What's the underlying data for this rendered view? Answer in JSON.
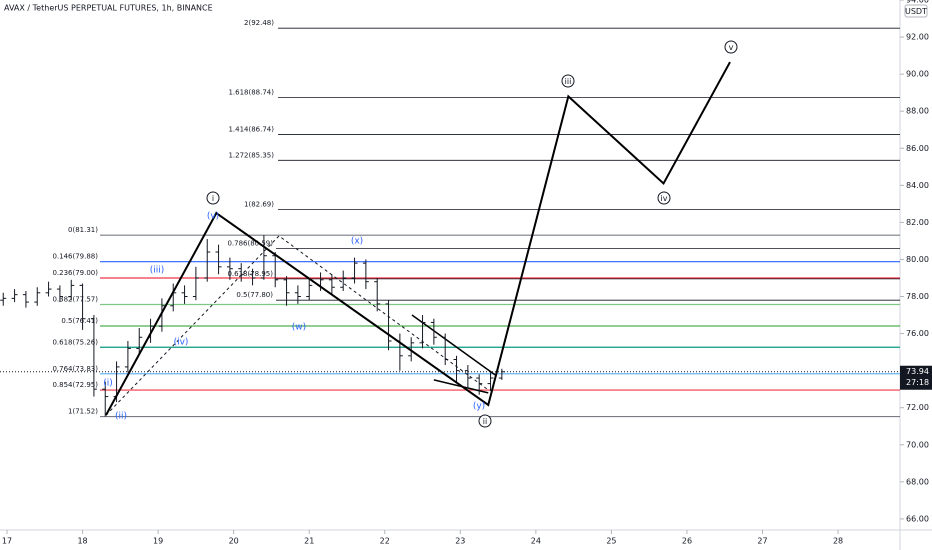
{
  "chart_data": {
    "type": "ohlc",
    "title": "AVAX / TetherUS PERPETUAL FUTURES, 1h, BINANCE",
    "currency": "USDT",
    "color": "#131722",
    "x": [
      16.95,
      17.1,
      17.25,
      17.4,
      17.55,
      17.7,
      17.85,
      18.0,
      18.15,
      18.3,
      18.45,
      18.6,
      18.75,
      18.9,
      19.05,
      19.2,
      19.35,
      19.5,
      19.65,
      19.8,
      19.95,
      20.1,
      20.25,
      20.4,
      20.55,
      20.7,
      20.85,
      21.0,
      21.15,
      21.3,
      21.45,
      21.6,
      21.75,
      21.9,
      22.05,
      22.2,
      22.35,
      22.5,
      22.65,
      22.8,
      22.95,
      23.1,
      23.25,
      23.4,
      23.55
    ],
    "open": [
      77.8,
      77.9,
      78.1,
      77.7,
      78.2,
      78.4,
      78.0,
      78.6,
      76.8,
      73.0,
      72.6,
      74.2,
      75.2,
      75.8,
      76.4,
      77.5,
      78.2,
      78.0,
      79.0,
      80.4,
      79.6,
      79.5,
      79.2,
      79.0,
      80.2,
      78.9,
      78.2,
      78.0,
      78.6,
      78.9,
      78.5,
      79.0,
      79.8,
      78.8,
      77.6,
      75.6,
      74.8,
      75.5,
      76.6,
      75.8,
      74.6,
      74.0,
      73.6,
      73.3,
      73.6
    ],
    "high": [
      78.2,
      78.4,
      78.3,
      78.5,
      78.8,
      78.6,
      78.9,
      78.7,
      77.0,
      73.4,
      74.5,
      75.6,
      76.3,
      76.8,
      77.9,
      78.7,
      78.6,
      79.6,
      81.1,
      80.8,
      80.1,
      79.8,
      79.5,
      81.31,
      80.4,
      79.1,
      78.6,
      79.0,
      79.3,
      79.2,
      79.4,
      80.1,
      80.0,
      79.0,
      77.8,
      76.0,
      75.8,
      77.0,
      76.8,
      76.0,
      74.8,
      74.3,
      73.8,
      73.9,
      74.1
    ],
    "low": [
      77.5,
      77.7,
      77.4,
      77.5,
      78.0,
      77.7,
      77.8,
      76.2,
      72.6,
      71.52,
      72.3,
      73.9,
      74.9,
      75.5,
      76.1,
      77.2,
      77.6,
      77.8,
      78.8,
      79.2,
      78.9,
      78.8,
      78.6,
      78.9,
      78.5,
      77.5,
      77.6,
      77.8,
      78.3,
      78.1,
      78.3,
      78.7,
      78.4,
      77.2,
      75.1,
      74.0,
      74.5,
      75.2,
      75.4,
      74.3,
      73.4,
      73.1,
      72.7,
      72.9,
      73.5
    ],
    "close": [
      77.9,
      78.1,
      77.7,
      78.2,
      78.4,
      78.0,
      78.6,
      76.8,
      73.0,
      72.6,
      74.2,
      75.2,
      75.8,
      76.4,
      77.5,
      78.2,
      78.0,
      79.0,
      80.4,
      79.6,
      79.5,
      79.2,
      79.0,
      80.2,
      78.9,
      78.2,
      78.0,
      78.6,
      78.9,
      78.5,
      79.0,
      79.8,
      78.8,
      77.6,
      75.6,
      74.8,
      75.5,
      76.6,
      75.8,
      74.6,
      74.0,
      73.6,
      73.3,
      73.6,
      73.94
    ],
    "xlim": [
      16.907,
      28.82
    ],
    "xticks": [
      17,
      18,
      19,
      20,
      21,
      22,
      23,
      24,
      25,
      26,
      27,
      28
    ],
    "ylim": [
      65.4,
      94.0
    ],
    "yticks": [
      {
        "value": 66,
        "label": "66.00"
      },
      {
        "value": 68,
        "label": "68.00"
      },
      {
        "value": 70,
        "label": "70.00"
      },
      {
        "value": 72,
        "label": "72.00"
      },
      {
        "value": 74,
        "label": "74.00"
      },
      {
        "value": 76,
        "label": "76.00"
      },
      {
        "value": 78,
        "label": "78.00"
      },
      {
        "value": 80,
        "label": "80.00"
      },
      {
        "value": 82,
        "label": "82.00"
      },
      {
        "value": 84,
        "label": "84.00"
      },
      {
        "value": 86,
        "label": "86.00"
      },
      {
        "value": 88,
        "label": "88.00"
      },
      {
        "value": 90,
        "label": "90.00"
      },
      {
        "value": 92,
        "label": "92.00"
      },
      {
        "value": 94,
        "label": "94.00"
      }
    ],
    "last_price": 73.94,
    "countdown": "27:18",
    "fib_sets": [
      {
        "levels": [
          {
            "label": "0(81.31)",
            "value": 81.31,
            "color": "#787b86"
          },
          {
            "label": "0.146(79.88)",
            "value": 79.88,
            "color": "#2962ff"
          },
          {
            "label": "0.236(79.00)",
            "value": 79.0,
            "color": "#f23645"
          },
          {
            "label": "0.382(77.57)",
            "value": 77.57,
            "color": "#81c784"
          },
          {
            "label": "0.5(76.41)",
            "value": 76.41,
            "color": "#4caf50"
          },
          {
            "label": "0.618(75.26)",
            "value": 75.26,
            "color": "#089981"
          },
          {
            "label": "0.764(73.83)",
            "value": 73.83,
            "color": "#64b5f6"
          },
          {
            "label": "0.854(72.95)",
            "value": 72.95,
            "color": "#f23645"
          },
          {
            "label": "1(71.52)",
            "value": 71.52,
            "color": "#787b86"
          }
        ]
      },
      {
        "levels": [
          {
            "label": "2(92.48)",
            "value": 92.48,
            "color": "#131722"
          },
          {
            "label": "1.618(88.74)",
            "value": 88.74,
            "color": "#131722"
          },
          {
            "label": "1.414(86.74)",
            "value": 86.74,
            "color": "#131722"
          },
          {
            "label": "1.272(85.35)",
            "value": 85.35,
            "color": "#131722"
          },
          {
            "label": "1(82.69)",
            "value": 82.69,
            "color": "#131722"
          }
        ]
      },
      {
        "levels": [
          {
            "label": "0.786(80.59)",
            "value": 80.59,
            "color": "#131722"
          },
          {
            "label": "0.618(78.95)",
            "value": 78.95,
            "color": "#131722"
          },
          {
            "label": "0.5(77.80)",
            "value": 77.8,
            "color": "#131722"
          }
        ]
      }
    ],
    "wave_path": {
      "x": [
        18.31,
        19.77,
        23.37,
        24.43,
        25.69,
        26.57
      ],
      "y": [
        71.6,
        82.5,
        72.15,
        88.8,
        84.1,
        90.65
      ],
      "color": "#000000"
    },
    "dashed_path": {
      "x": [
        18.31,
        20.6,
        23.37
      ],
      "y": [
        71.6,
        81.27,
        72.96
      ],
      "color": "#131722"
    },
    "channels": [
      {
        "x": [
          22.36,
          23.46
        ],
        "y": [
          77.0,
          73.77
        ]
      },
      {
        "x": [
          22.65,
          23.37
        ],
        "y": [
          73.5,
          72.8
        ]
      }
    ],
    "wave_labels": {
      "major": [
        "i",
        "ii",
        "iii",
        "iv",
        "v"
      ],
      "minor": [
        "(i)",
        "(ii)",
        "(iii)",
        "(iv)",
        "(v)",
        "(w)",
        "(x)",
        "(y)"
      ],
      "minor_color": "#2962ff"
    }
  }
}
